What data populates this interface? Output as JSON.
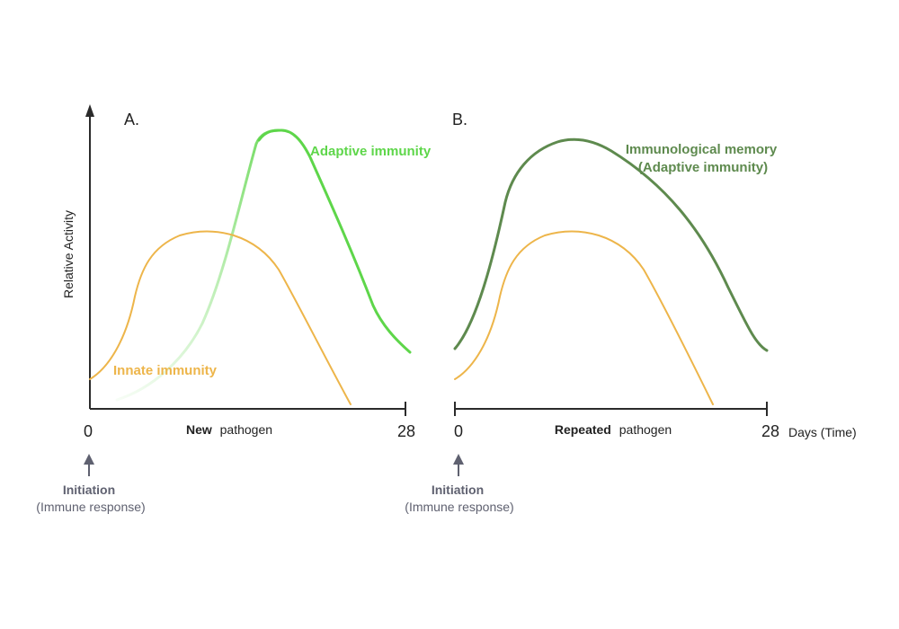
{
  "panelA": {
    "letter": "A.",
    "y_axis_label": "Relative Activity",
    "x_start": "0",
    "x_end": "28",
    "x_caption_bold": "New",
    "x_caption_rest": "pathogen",
    "innate_label": "Innate immunity",
    "adaptive_label": "Adaptive immunity",
    "initiation_title": "Initiation",
    "initiation_sub": "(Immune response)"
  },
  "panelB": {
    "letter": "B.",
    "x_start": "0",
    "x_end": "28",
    "x_unit": "Days (Time)",
    "x_caption_bold": "Repeated",
    "x_caption_rest": "pathogen",
    "memory_label_line1": "Immunological memory",
    "memory_label_line2": "(Adaptive immunity)",
    "initiation_title": "Initiation",
    "initiation_sub": "(Immune response)"
  },
  "colors": {
    "innate": "#EDB54A",
    "adaptive": "#5ED64A",
    "memory": "#5E8A4E",
    "axis": "#2b2b2b",
    "arrow": "#5f6170",
    "text": "#222222"
  }
}
